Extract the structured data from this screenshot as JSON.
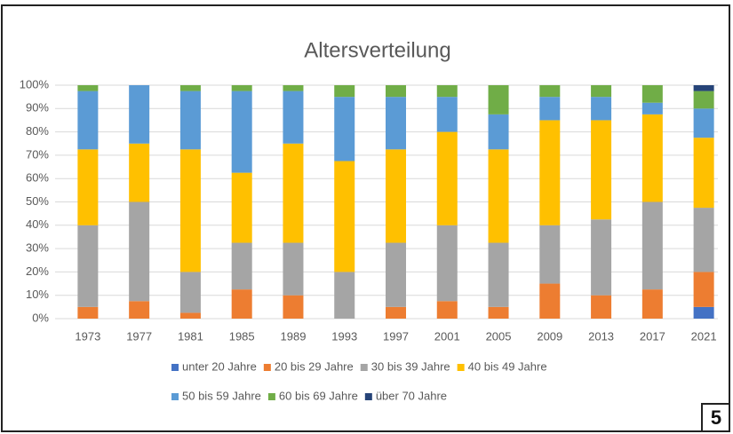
{
  "chart_data": {
    "type": "stacked_bar",
    "title": "Altersverteilung",
    "categories": [
      "1973",
      "1977",
      "1981",
      "1985",
      "1989",
      "1993",
      "1997",
      "2001",
      "2005",
      "2009",
      "2013",
      "2017",
      "2021"
    ],
    "series": [
      {
        "name": "unter 20 Jahre",
        "color": "#4472c4",
        "values": [
          0,
          0,
          0,
          0,
          0,
          0,
          0,
          0,
          0,
          0,
          0,
          0,
          5
        ]
      },
      {
        "name": "20 bis 29 Jahre",
        "color": "#ed7d31",
        "values": [
          5,
          7.5,
          2.5,
          12.5,
          10,
          0,
          5,
          7.5,
          5,
          15,
          10,
          12.5,
          15
        ]
      },
      {
        "name": "30 bis 39 Jahre",
        "color": "#a5a5a5",
        "values": [
          35,
          42.5,
          17.5,
          20,
          22.5,
          20,
          27.5,
          32.5,
          27.5,
          25,
          32.5,
          37.5,
          27.5
        ]
      },
      {
        "name": "40 bis 49 Jahre",
        "color": "#ffc000",
        "values": [
          32.5,
          25,
          52.5,
          30,
          42.5,
          47.5,
          40,
          40,
          40,
          45,
          42.5,
          37.5,
          30
        ]
      },
      {
        "name": "50 bis 59 Jahre",
        "color": "#5b9bd5",
        "values": [
          25,
          25,
          25,
          35,
          22.5,
          27.5,
          22.5,
          15,
          15,
          10,
          10,
          5,
          12.5
        ]
      },
      {
        "name": "60 bis 69 Jahre",
        "color": "#70ad47",
        "values": [
          2.5,
          0,
          2.5,
          2.5,
          2.5,
          5,
          5,
          5,
          12.5,
          5,
          5,
          7.5,
          7.5
        ]
      },
      {
        "name": "über 70 Jahre",
        "color": "#264478",
        "values": [
          0,
          0,
          0,
          0,
          0,
          0,
          0,
          0,
          0,
          0,
          0,
          0,
          2.5
        ]
      }
    ],
    "ylim": [
      0,
      100
    ],
    "yticks": [
      {
        "value": 0,
        "label": "0%"
      },
      {
        "value": 10,
        "label": "10%"
      },
      {
        "value": 20,
        "label": "20%"
      },
      {
        "value": 30,
        "label": "30%"
      },
      {
        "value": 40,
        "label": "40%"
      },
      {
        "value": 50,
        "label": "50%"
      },
      {
        "value": 60,
        "label": "60%"
      },
      {
        "value": 70,
        "label": "70%"
      },
      {
        "value": 80,
        "label": "80%"
      },
      {
        "value": 90,
        "label": "90%"
      },
      {
        "value": 100,
        "label": "100%"
      }
    ],
    "grid": true,
    "legend": "bottom"
  },
  "page_number": "5"
}
